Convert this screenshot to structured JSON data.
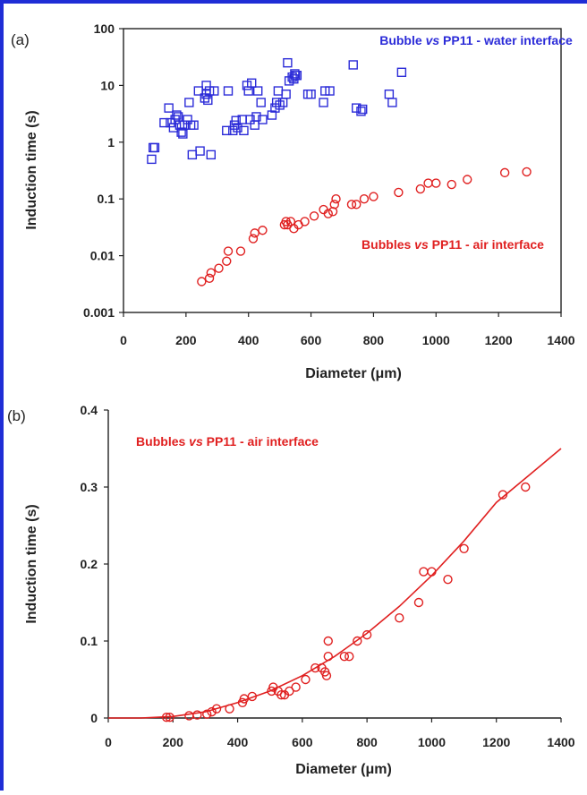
{
  "colors": {
    "frame": "#1f2dd6",
    "series_blue": "#2b2bd8",
    "series_red": "#e02020",
    "axis": "#222222"
  },
  "chart_data": [
    {
      "panel_label": "(a)",
      "type": "scatter",
      "xlabel": "Diameter (μm)",
      "ylabel": "Induction time (s)",
      "xlim": [
        0,
        1400
      ],
      "ylim": [
        0.001,
        100
      ],
      "yscale": "log",
      "xticks": [
        "0",
        "200",
        "400",
        "600",
        "800",
        "1000",
        "1200",
        "1400"
      ],
      "yticks": [
        "0.001",
        "0.01",
        "0.1",
        "1",
        "10",
        "100"
      ],
      "grid": false,
      "series": [
        {
          "name": "Bubble vs PP11 - water interface",
          "marker": "square",
          "color": "#2b2bd8",
          "points": [
            [
              90,
              0.5
            ],
            [
              95,
              0.8
            ],
            [
              100,
              0.8
            ],
            [
              130,
              2.2
            ],
            [
              145,
              4
            ],
            [
              150,
              2.2
            ],
            [
              160,
              1.8
            ],
            [
              165,
              2.5
            ],
            [
              170,
              3.0
            ],
            [
              175,
              2.8
            ],
            [
              180,
              2.0
            ],
            [
              185,
              1.5
            ],
            [
              190,
              1.4
            ],
            [
              195,
              2.0
            ],
            [
              205,
              2.5
            ],
            [
              210,
              5
            ],
            [
              215,
              2.0
            ],
            [
              220,
              0.6
            ],
            [
              225,
              2.0
            ],
            [
              240,
              8
            ],
            [
              245,
              0.7
            ],
            [
              260,
              6
            ],
            [
              265,
              7
            ],
            [
              265,
              10
            ],
            [
              270,
              5.5
            ],
            [
              275,
              8
            ],
            [
              280,
              0.6
            ],
            [
              290,
              8
            ],
            [
              330,
              1.6
            ],
            [
              335,
              8
            ],
            [
              350,
              1.6
            ],
            [
              355,
              2.0
            ],
            [
              360,
              2.4
            ],
            [
              365,
              1.8
            ],
            [
              380,
              2.5
            ],
            [
              385,
              1.6
            ],
            [
              395,
              10
            ],
            [
              400,
              8
            ],
            [
              405,
              2.5
            ],
            [
              410,
              11
            ],
            [
              420,
              2.0
            ],
            [
              425,
              2.8
            ],
            [
              430,
              8
            ],
            [
              440,
              5
            ],
            [
              445,
              2.5
            ],
            [
              475,
              3
            ],
            [
              485,
              4
            ],
            [
              490,
              5
            ],
            [
              495,
              8
            ],
            [
              500,
              4.5
            ],
            [
              510,
              5
            ],
            [
              520,
              7
            ],
            [
              525,
              25
            ],
            [
              530,
              12
            ],
            [
              540,
              14
            ],
            [
              545,
              13
            ],
            [
              548,
              16
            ],
            [
              550,
              15
            ],
            [
              555,
              15
            ],
            [
              590,
              7
            ],
            [
              600,
              7
            ],
            [
              640,
              5
            ],
            [
              645,
              8
            ],
            [
              660,
              8
            ],
            [
              735,
              23
            ],
            [
              745,
              4
            ],
            [
              760,
              3.5
            ],
            [
              765,
              3.8
            ],
            [
              850,
              7
            ],
            [
              860,
              5
            ],
            [
              890,
              17
            ]
          ]
        },
        {
          "name": "Bubbles vs PP11 - air interface",
          "marker": "circle",
          "color": "#e02020",
          "points": [
            [
              250,
              0.0035
            ],
            [
              275,
              0.004
            ],
            [
              280,
              0.005
            ],
            [
              305,
              0.006
            ],
            [
              330,
              0.008
            ],
            [
              335,
              0.012
            ],
            [
              375,
              0.012
            ],
            [
              415,
              0.02
            ],
            [
              420,
              0.025
            ],
            [
              445,
              0.028
            ],
            [
              515,
              0.035
            ],
            [
              520,
              0.04
            ],
            [
              525,
              0.035
            ],
            [
              535,
              0.04
            ],
            [
              545,
              0.03
            ],
            [
              560,
              0.035
            ],
            [
              580,
              0.04
            ],
            [
              610,
              0.05
            ],
            [
              640,
              0.065
            ],
            [
              655,
              0.055
            ],
            [
              670,
              0.06
            ],
            [
              675,
              0.08
            ],
            [
              680,
              0.1
            ],
            [
              730,
              0.08
            ],
            [
              745,
              0.08
            ],
            [
              770,
              0.1
            ],
            [
              800,
              0.11
            ],
            [
              880,
              0.13
            ],
            [
              950,
              0.15
            ],
            [
              975,
              0.19
            ],
            [
              1000,
              0.19
            ],
            [
              1050,
              0.18
            ],
            [
              1100,
              0.22
            ],
            [
              1220,
              0.29
            ],
            [
              1290,
              0.3
            ]
          ]
        }
      ],
      "annotations": [
        {
          "parts": [
            {
              "t": "Bubble "
            },
            {
              "t": "vs",
              "italic": true
            },
            {
              "t": " PP11 - water interface"
            }
          ],
          "color": "#2b2bd8"
        },
        {
          "parts": [
            {
              "t": "Bubbles "
            },
            {
              "t": "vs",
              "italic": true
            },
            {
              "t": " PP11 - air interface"
            }
          ],
          "color": "#e02020"
        }
      ]
    },
    {
      "panel_label": "(b)",
      "type": "scatter",
      "xlabel": "Diameter (μm)",
      "ylabel": "Induction time (s)",
      "xlim": [
        0,
        1400
      ],
      "ylim": [
        0,
        0.4
      ],
      "yscale": "linear",
      "xticks": [
        "0",
        "200",
        "400",
        "600",
        "800",
        "1000",
        "1200",
        "1400"
      ],
      "yticks": [
        "0",
        "0.1",
        "0.2",
        "0.3",
        "0.4"
      ],
      "grid": false,
      "series": [
        {
          "name": "Bubbles vs PP11 - air interface",
          "marker": "circle",
          "color": "#e02020",
          "points": [
            [
              180,
              0.001
            ],
            [
              190,
              0.001
            ],
            [
              250,
              0.003
            ],
            [
              275,
              0.004
            ],
            [
              305,
              0.005
            ],
            [
              320,
              0.008
            ],
            [
              335,
              0.012
            ],
            [
              375,
              0.012
            ],
            [
              415,
              0.02
            ],
            [
              420,
              0.025
            ],
            [
              445,
              0.028
            ],
            [
              505,
              0.035
            ],
            [
              510,
              0.04
            ],
            [
              525,
              0.035
            ],
            [
              535,
              0.03
            ],
            [
              545,
              0.03
            ],
            [
              560,
              0.035
            ],
            [
              580,
              0.04
            ],
            [
              610,
              0.05
            ],
            [
              640,
              0.065
            ],
            [
              660,
              0.065
            ],
            [
              670,
              0.06
            ],
            [
              675,
              0.055
            ],
            [
              680,
              0.08
            ],
            [
              680,
              0.1
            ],
            [
              730,
              0.08
            ],
            [
              745,
              0.08
            ],
            [
              770,
              0.1
            ],
            [
              800,
              0.108
            ],
            [
              900,
              0.13
            ],
            [
              960,
              0.15
            ],
            [
              975,
              0.19
            ],
            [
              1000,
              0.19
            ],
            [
              1050,
              0.18
            ],
            [
              1100,
              0.22
            ],
            [
              1220,
              0.29
            ],
            [
              1290,
              0.3
            ]
          ]
        },
        {
          "name": "fit",
          "type": "line",
          "color": "#e02020",
          "points": [
            [
              0,
              0.0
            ],
            [
              100,
              0.0
            ],
            [
              200,
              0.002
            ],
            [
              300,
              0.008
            ],
            [
              400,
              0.02
            ],
            [
              500,
              0.035
            ],
            [
              600,
              0.055
            ],
            [
              700,
              0.08
            ],
            [
              800,
              0.11
            ],
            [
              900,
              0.145
            ],
            [
              1000,
              0.185
            ],
            [
              1100,
              0.23
            ],
            [
              1200,
              0.28
            ],
            [
              1300,
              0.315
            ],
            [
              1400,
              0.35
            ]
          ]
        }
      ],
      "annotations": [
        {
          "parts": [
            {
              "t": "Bubbles "
            },
            {
              "t": "vs",
              "italic": true
            },
            {
              "t": " PP11 - air interface"
            }
          ],
          "color": "#e02020"
        }
      ]
    }
  ]
}
